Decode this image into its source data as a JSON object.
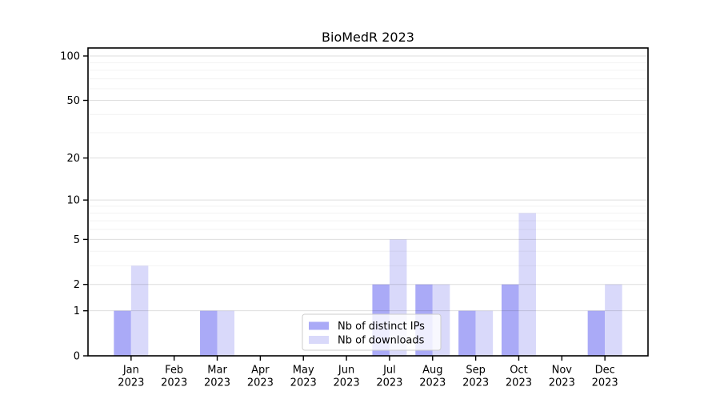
{
  "figure": {
    "background": "#ffffff",
    "frame_color": "#000000"
  },
  "chart_data": {
    "type": "bar",
    "title": "BioMedR 2023",
    "categories": [
      "Jan 2023",
      "Feb 2023",
      "Mar 2023",
      "Apr 2023",
      "May 2023",
      "Jun 2023",
      "Jul 2023",
      "Aug 2023",
      "Sep 2023",
      "Oct 2023",
      "Nov 2023",
      "Dec 2023"
    ],
    "series": [
      {
        "name": "Nb of distinct IPs",
        "color": "#aaaaf7",
        "values": [
          1,
          0,
          1,
          0,
          0,
          0,
          2,
          2,
          1,
          2,
          0,
          1
        ]
      },
      {
        "name": "Nb of downloads",
        "color": "#d9d9fa",
        "values": [
          3,
          0,
          1,
          0,
          0,
          0,
          5,
          2,
          1,
          8,
          0,
          2
        ]
      }
    ],
    "xlabel": "",
    "ylabel": "",
    "yscale": "log1p",
    "ylim": [
      0,
      113
    ],
    "yticks": [
      0,
      1,
      2,
      5,
      10,
      20,
      50,
      100
    ],
    "minor_yticks": [
      3,
      4,
      6,
      7,
      8,
      9,
      30,
      40,
      60,
      70,
      80,
      90
    ],
    "grid": true,
    "legend_position": "lower center",
    "legend": {
      "items": [
        {
          "label": "Nb of distinct IPs",
          "color": "#aaaaf7"
        },
        {
          "label": "Nb of downloads",
          "color": "#d9d9fa"
        }
      ],
      "fill": "rgba(255,255,255,0.8)",
      "border": "#cccccc"
    }
  }
}
